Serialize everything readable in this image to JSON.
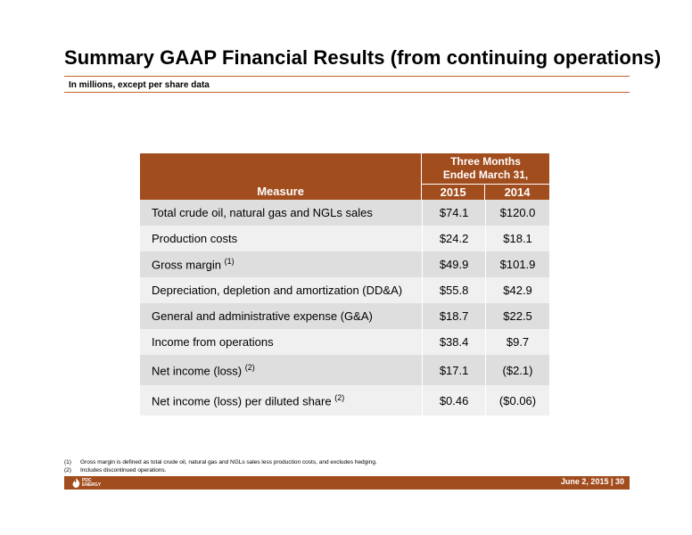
{
  "header": {
    "title": "Summary GAAP Financial Results (from continuing operations)",
    "subtitle": "In millions, except per share data"
  },
  "table": {
    "measure_header": "Measure",
    "period_header": "Three Months Ended March 31,",
    "years": [
      "2015",
      "2014"
    ],
    "rows": [
      {
        "label": "Total crude oil, natural gas and NGLs sales",
        "sup": "",
        "v2015": "$74.1",
        "v2014": "$120.0"
      },
      {
        "label": "Production costs",
        "sup": "",
        "v2015": "$24.2",
        "v2014": "$18.1"
      },
      {
        "label": "Gross margin",
        "sup": "(1)",
        "v2015": "$49.9",
        "v2014": "$101.9"
      },
      {
        "label": "Depreciation, depletion and amortization (DD&A)",
        "sup": "",
        "v2015": "$55.8",
        "v2014": "$42.9"
      },
      {
        "label": "General and administrative expense (G&A)",
        "sup": "",
        "v2015": "$18.7",
        "v2014": "$22.5"
      },
      {
        "label": "Income from operations",
        "sup": "",
        "v2015": "$38.4",
        "v2014": "$9.7"
      },
      {
        "label": "Net income (loss)",
        "sup": "(2)",
        "v2015": "$17.1",
        "v2014": "($2.1)"
      },
      {
        "label": "Net income (loss) per diluted share",
        "sup": "(2)",
        "v2015": "$0.46",
        "v2014": "($0.06)"
      }
    ]
  },
  "footnotes": [
    {
      "num": "(1)",
      "text": "Gross margin is defined as total crude oil, natural gas and NGLs sales less production costs, and excludes hedging."
    },
    {
      "num": "(2)",
      "text": "Includes discontinued operations."
    }
  ],
  "footer": {
    "logo_line1": "PDC",
    "logo_line2": "ENERGY",
    "date_page": "June 2, 2015  |  30"
  },
  "colors": {
    "brand": "#a24d1e",
    "row_dark": "#dedede",
    "row_light": "#f0f0f0"
  }
}
